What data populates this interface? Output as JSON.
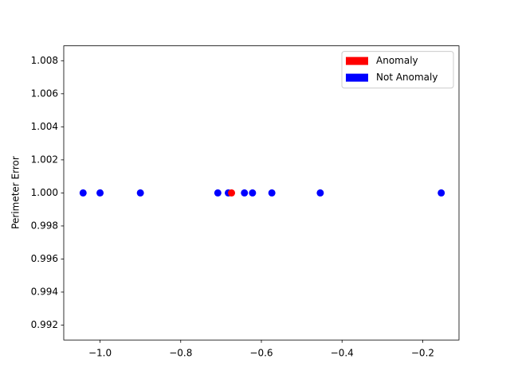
{
  "chart_data": {
    "type": "scatter",
    "y_label": "Perimeter Error",
    "xlim": [
      -1.09,
      -0.11
    ],
    "ylim": [
      0.9911,
      1.0089
    ],
    "xticks": [
      {
        "value": -1.0,
        "label": "−1.0"
      },
      {
        "value": -0.8,
        "label": "−0.8"
      },
      {
        "value": -0.6,
        "label": "−0.6"
      },
      {
        "value": -0.4,
        "label": "−0.4"
      },
      {
        "value": -0.2,
        "label": "−0.2"
      }
    ],
    "yticks": [
      0.992,
      0.994,
      0.996,
      0.998,
      {
        "value": 1,
        "label": "1.000"
      },
      1.002,
      1.004,
      1.006,
      1.008
    ],
    "legend": "upper right",
    "series": [
      {
        "name": "Not Anomaly",
        "color": "#0000ff",
        "x": [
          -1.042,
          -1.0,
          -0.9,
          -0.708,
          -0.682,
          -0.642,
          -0.622,
          -0.574,
          -0.454,
          -0.154
        ],
        "y": [
          1,
          1,
          1,
          1,
          1,
          1,
          1,
          1,
          1,
          1
        ]
      },
      {
        "name": "Anomaly",
        "color": "#ff0000",
        "x": [
          -0.674
        ],
        "y": [
          1
        ]
      }
    ],
    "legend_order": [
      1,
      0
    ]
  }
}
